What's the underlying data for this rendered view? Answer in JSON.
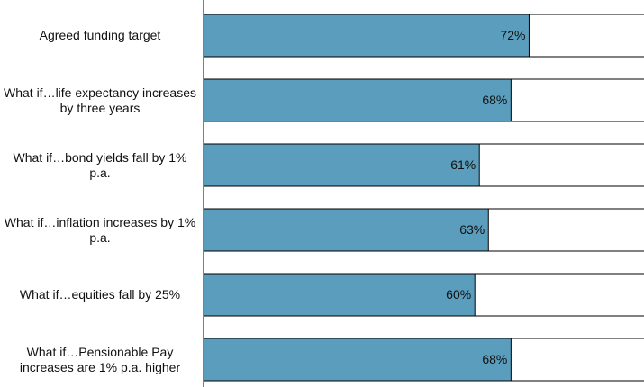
{
  "chart_data": {
    "type": "barh",
    "categories": [
      "Agreed funding target",
      "What if…life expectancy increases by three years",
      "What if…bond yields fall by 1% p.a.",
      "What if…inflation increases by 1% p.a.",
      "What if…equities fall by 25%",
      "What if…Pensionable Pay increases are 1% p.a. higher"
    ],
    "values": [
      72,
      68,
      61,
      63,
      60,
      68
    ],
    "value_labels": [
      "72%",
      "68%",
      "61%",
      "63%",
      "60%",
      "68%"
    ],
    "color": "#5b9dbd",
    "xlim": [
      0,
      100
    ]
  }
}
